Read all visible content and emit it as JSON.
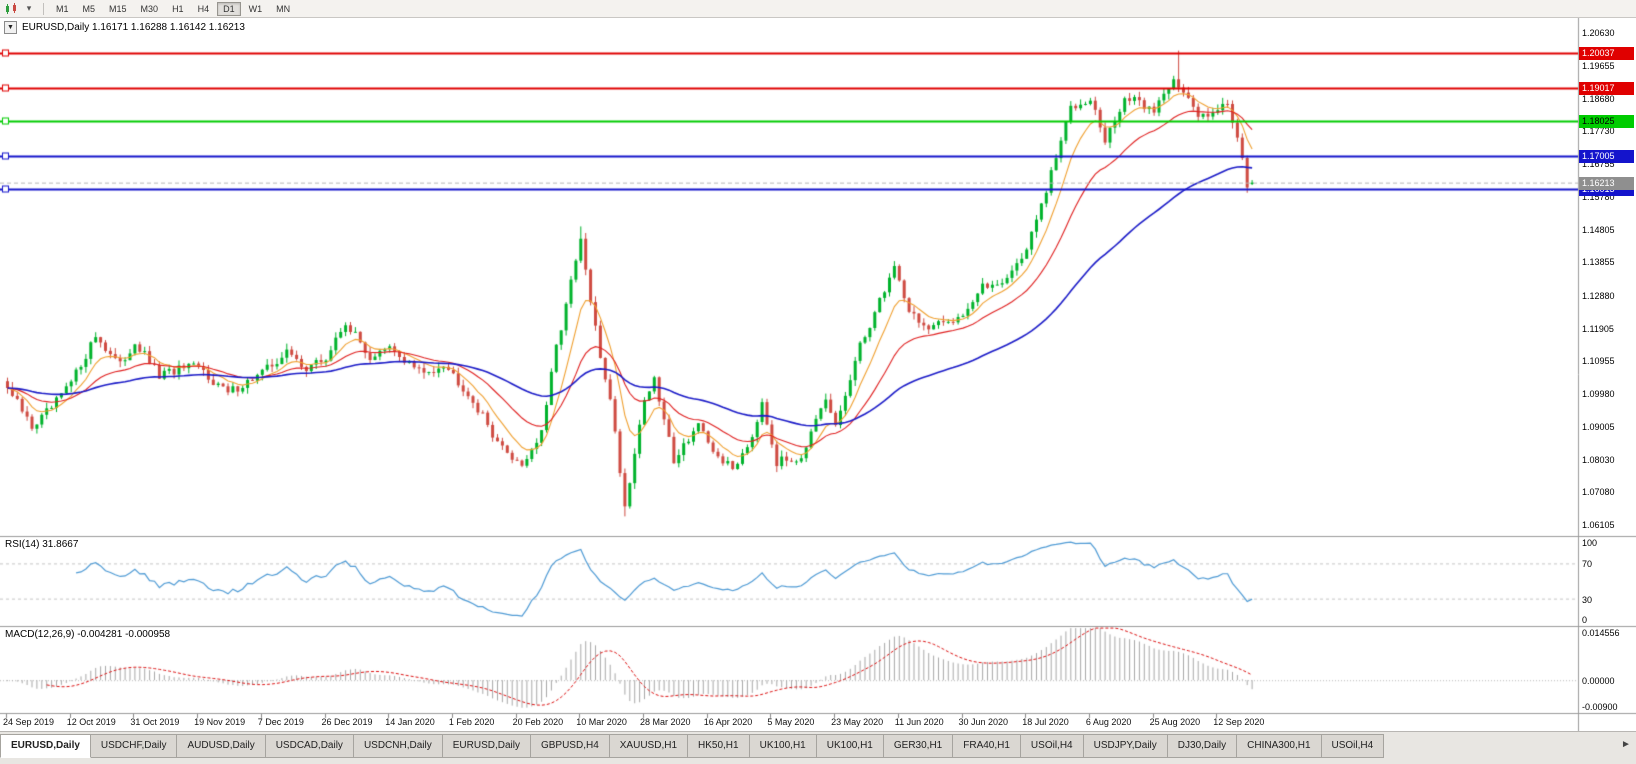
{
  "colors": {
    "up": "#00b32c",
    "down": "#cf4b42",
    "ma_fast": "#f0a030",
    "ma_mid": "#e02020",
    "ma_slow": "#1c1cc8",
    "rsi_line": "#4f9bd5",
    "macd_hist": "#a8a8a8",
    "macd_signal": "#dd1111",
    "bid_badge_bg": "#8f8f8f",
    "bid_badge_text": "#ffffff",
    "pane_border": "#9a9a9a",
    "level_dash": "#c6c6c6"
  },
  "toolbar": {
    "timeframes": [
      {
        "label": "M1",
        "active": false
      },
      {
        "label": "M5",
        "active": false
      },
      {
        "label": "M15",
        "active": false
      },
      {
        "label": "M30",
        "active": false
      },
      {
        "label": "H1",
        "active": false
      },
      {
        "label": "H4",
        "active": false
      },
      {
        "label": "D1",
        "active": true
      },
      {
        "label": "W1",
        "active": false
      },
      {
        "label": "MN",
        "active": false
      }
    ]
  },
  "chart": {
    "title": "EURUSD,Daily 1.16171 1.16288 1.16142 1.16213",
    "oct_toggle": "▼",
    "rsi_label": "RSI(14) 31.8667",
    "macd_label": "MACD(12,26,9) -0.004281 -0.000958",
    "price_ticks": [
      "1.20630",
      "1.19655",
      "1.18680",
      "1.17730",
      "1.16755",
      "1.15780",
      "1.14805",
      "1.13855",
      "1.12880",
      "1.11905",
      "1.10955",
      "1.09980",
      "1.09005",
      "1.08030",
      "1.07080",
      "1.06105"
    ],
    "rsi_ticks": [
      {
        "label": "100",
        "value": 100
      },
      {
        "label": "70",
        "value": 70
      },
      {
        "label": "30",
        "value": 30
      },
      {
        "label": "0",
        "value": 0
      }
    ],
    "macd_ticks": [
      {
        "label": "0.014556",
        "value": 0.014556
      },
      {
        "label": "0.00000",
        "value": 0
      },
      {
        "label": "-0.00900",
        "value": -0.009
      }
    ],
    "sr_lines": [
      {
        "price": 1.20037,
        "label": "1.20037",
        "color": "#e00000",
        "text": "#ffffff"
      },
      {
        "price": 1.19017,
        "label": "1.19017",
        "color": "#e00000",
        "text": "#ffffff"
      },
      {
        "price": 1.18025,
        "label": "1.18025",
        "color": "#00cc00",
        "text": "#000000"
      },
      {
        "price": 1.17005,
        "label": "1.17005",
        "color": "#1414cc",
        "text": "#ffffff"
      },
      {
        "price": 1.16013,
        "label": "1.16013",
        "color": "#1414cc",
        "text": "#ffffff"
      }
    ],
    "bid": {
      "price": 1.16213,
      "label": "1.16213"
    }
  },
  "chart_data": {
    "type": "candlestick",
    "symbol": "EURUSD",
    "timeframe": "Daily",
    "ohlc": {
      "open": 1.16171,
      "high": 1.16288,
      "low": 1.16142,
      "close": 1.16213
    },
    "bar_count": 255,
    "y_axis_range": [
      1.0581,
      1.21073
    ],
    "x_date_labels": [
      "24 Sep 2019",
      "12 Oct 2019",
      "31 Oct 2019",
      "19 Nov 2019",
      "7 Dec 2019",
      "26 Dec 2019",
      "14 Jan 2020",
      "1 Feb 2020",
      "20 Feb 2020",
      "10 Mar 2020",
      "28 Mar 2020",
      "16 Apr 2020",
      "5 May 2020",
      "23 May 2020",
      "11 Jun 2020",
      "30 Jun 2020",
      "18 Jul 2020",
      "6 Aug 2020",
      "25 Aug 2020",
      "12 Sep 2020"
    ],
    "label_every_bars": 13,
    "price_anchors": [
      [
        0,
        1.1015
      ],
      [
        5,
        1.09
      ],
      [
        9,
        1.0955
      ],
      [
        13,
        1.103
      ],
      [
        18,
        1.117
      ],
      [
        23,
        1.108
      ],
      [
        26,
        1.115
      ],
      [
        31,
        1.105
      ],
      [
        35,
        1.107
      ],
      [
        39,
        1.1075
      ],
      [
        45,
        1.1
      ],
      [
        52,
        1.106
      ],
      [
        57,
        1.112
      ],
      [
        61,
        1.1075
      ],
      [
        65,
        1.11
      ],
      [
        69,
        1.121
      ],
      [
        74,
        1.1105
      ],
      [
        78,
        1.113
      ],
      [
        85,
        1.1055
      ],
      [
        89,
        1.109
      ],
      [
        94,
        1.1
      ],
      [
        101,
        1.0835
      ],
      [
        105,
        1.079
      ],
      [
        109,
        1.088
      ],
      [
        112,
        1.1135
      ],
      [
        117,
        1.145
      ],
      [
        119,
        1.127
      ],
      [
        121,
        1.1105
      ],
      [
        123,
        1.099
      ],
      [
        126,
        1.0665
      ],
      [
        130,
        1.0985
      ],
      [
        132,
        1.1035
      ],
      [
        136,
        1.0805
      ],
      [
        141,
        1.091
      ],
      [
        143,
        1.084
      ],
      [
        148,
        1.0775
      ],
      [
        152,
        1.0875
      ],
      [
        154,
        1.098
      ],
      [
        157,
        1.0795
      ],
      [
        162,
        1.0815
      ],
      [
        167,
        1.0975
      ],
      [
        169,
        1.09
      ],
      [
        174,
        1.1135
      ],
      [
        181,
        1.1375
      ],
      [
        184,
        1.1245
      ],
      [
        188,
        1.1185
      ],
      [
        195,
        1.1235
      ],
      [
        199,
        1.131
      ],
      [
        204,
        1.134
      ],
      [
        208,
        1.1425
      ],
      [
        212,
        1.1595
      ],
      [
        217,
        1.1845
      ],
      [
        221,
        1.1875
      ],
      [
        224,
        1.174
      ],
      [
        228,
        1.187
      ],
      [
        231,
        1.1855
      ],
      [
        234,
        1.1835
      ],
      [
        238,
        1.1935
      ],
      [
        239,
        1.191
      ],
      [
        243,
        1.1815
      ],
      [
        247,
        1.1845
      ],
      [
        249,
        1.185
      ],
      [
        251,
        1.1762
      ],
      [
        252,
        1.17
      ],
      [
        253,
        1.1618
      ],
      [
        254,
        1.16213
      ]
    ],
    "extremes": [
      {
        "i": 117,
        "high": 1.1492
      },
      {
        "i": 126,
        "low": 1.0636
      },
      {
        "i": 239,
        "high": 1.2011
      }
    ],
    "moving_averages": [
      {
        "period": 8,
        "color_key": "ma_fast"
      },
      {
        "period": 21,
        "color_key": "ma_mid"
      },
      {
        "period": 60,
        "color_key": "ma_slow"
      }
    ],
    "horizontal_lines": [
      {
        "price": 1.20037,
        "color": "red"
      },
      {
        "price": 1.19017,
        "color": "red"
      },
      {
        "price": 1.18025,
        "color": "green"
      },
      {
        "price": 1.17005,
        "color": "blue"
      },
      {
        "price": 1.16013,
        "color": "blue"
      }
    ],
    "indicators": [
      {
        "name": "RSI",
        "params": "14",
        "value": 31.8667,
        "levels": [
          70,
          30
        ],
        "range": [
          0,
          100
        ]
      },
      {
        "name": "MACD",
        "params": "12,26,9",
        "main": -0.004281,
        "signal": -0.000958,
        "range": [
          -0.009,
          0.014556
        ]
      }
    ]
  },
  "tabs": {
    "items": [
      {
        "label": "EURUSD,Daily",
        "active": true
      },
      {
        "label": "USDCHF,Daily",
        "active": false
      },
      {
        "label": "AUDUSD,Daily",
        "active": false
      },
      {
        "label": "USDCAD,Daily",
        "active": false
      },
      {
        "label": "USDCNH,Daily",
        "active": false
      },
      {
        "label": "EURUSD,Daily",
        "active": false
      },
      {
        "label": "GBPUSD,H4",
        "active": false
      },
      {
        "label": "XAUUSD,H1",
        "active": false
      },
      {
        "label": "HK50,H1",
        "active": false
      },
      {
        "label": "UK100,H1",
        "active": false
      },
      {
        "label": "UK100,H1",
        "active": false
      },
      {
        "label": "GER30,H1",
        "active": false
      },
      {
        "label": "FRA40,H1",
        "active": false
      },
      {
        "label": "USOil,H4",
        "active": false
      },
      {
        "label": "USDJPY,Daily",
        "active": false
      },
      {
        "label": "DJ30,Daily",
        "active": false
      },
      {
        "label": "CHINA300,H1",
        "active": false
      },
      {
        "label": "USOil,H4",
        "active": false
      }
    ],
    "scroll_right": "►"
  }
}
